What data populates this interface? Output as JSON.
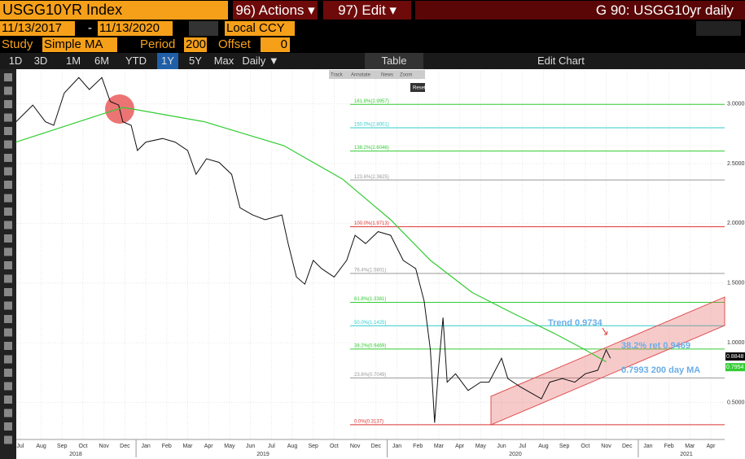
{
  "header": {
    "security": "USGG10YR Index",
    "actions": "96) Actions ▾",
    "edit": "97) Edit ▾",
    "title": "G 90: USGG10yr daily"
  },
  "controls": {
    "start_date": "11/13/2017",
    "separator": "-",
    "end_date": "11/13/2020",
    "currency": "Local CCY",
    "study_label": "Study",
    "study": "Simple MA",
    "period_label": "Period",
    "period": 200,
    "offset_label": "Offset",
    "offset": 0
  },
  "toolbar": {
    "ranges": [
      "1D",
      "3D",
      "1M",
      "6M",
      "YTD",
      "1Y",
      "5Y",
      "Max"
    ],
    "frequency": "Daily ▼",
    "table": "Table",
    "edit_chart": "Edit Chart"
  },
  "mini_toolbar": {
    "tools": [
      "Track",
      "Annotate",
      "News",
      "Zoom"
    ],
    "reset": "Reset"
  },
  "chart_data": {
    "type": "line",
    "xlim": [
      -0.19,
      33.66
    ],
    "xticks": [
      {
        "value": 0,
        "label": "Jul"
      },
      {
        "value": 1,
        "label": "Aug"
      },
      {
        "value": 2,
        "label": "Sep"
      },
      {
        "value": 3,
        "label": "Oct"
      },
      {
        "value": 4,
        "label": "Nov"
      },
      {
        "value": 5,
        "label": "Dec"
      },
      {
        "value": 6,
        "label": "Jan"
      },
      {
        "value": 7,
        "label": "Feb"
      },
      {
        "value": 8,
        "label": "Mar"
      },
      {
        "value": 9,
        "label": "Apr"
      },
      {
        "value": 10,
        "label": "May"
      },
      {
        "value": 11,
        "label": "Jun"
      },
      {
        "value": 12,
        "label": "Jul"
      },
      {
        "value": 13,
        "label": "Aug"
      },
      {
        "value": 14,
        "label": "Sep"
      },
      {
        "value": 15,
        "label": "Oct"
      },
      {
        "value": 16,
        "label": "Nov"
      },
      {
        "value": 17,
        "label": "Dec"
      },
      {
        "value": 18,
        "label": "Jan"
      },
      {
        "value": 19,
        "label": "Feb"
      },
      {
        "value": 20,
        "label": "Mar"
      },
      {
        "value": 21,
        "label": "Apr"
      },
      {
        "value": 22,
        "label": "May"
      },
      {
        "value": 23,
        "label": "Jun"
      },
      {
        "value": 24,
        "label": "Jul"
      },
      {
        "value": 25,
        "label": "Aug"
      },
      {
        "value": 26,
        "label": "Sep"
      },
      {
        "value": 27,
        "label": "Oct"
      },
      {
        "value": 28,
        "label": "Nov"
      },
      {
        "value": 29,
        "label": "Dec"
      },
      {
        "value": 30,
        "label": "Jan"
      },
      {
        "value": 31,
        "label": "Feb"
      },
      {
        "value": 32,
        "label": "Mar"
      },
      {
        "value": 33,
        "label": "Apr"
      }
    ],
    "years": [
      "2018",
      "2019",
      "2020",
      "2021"
    ],
    "ylim": [
      0.19,
      3.27
    ],
    "yticks": [
      {
        "value": 3,
        "label": "3.0000"
      },
      {
        "value": 2.5,
        "label": "2.5000"
      },
      {
        "value": 2,
        "label": "2.0000"
      },
      {
        "value": 1.5,
        "label": "1.5000"
      },
      {
        "value": 1,
        "label": "1.0000"
      },
      {
        "value": 0.5,
        "label": "0.5000"
      }
    ],
    "grid": true,
    "series": [
      {
        "color": "#111111",
        "x": [
          -0.2,
          0.6,
          1.2,
          1.6,
          2.1,
          2.8,
          3.3,
          3.9,
          4.3,
          4.7,
          4.9,
          5.3,
          5.6,
          6.0,
          6.8,
          7.4,
          8.0,
          8.4,
          8.9,
          9.5,
          10.1,
          10.5,
          11.1,
          11.7,
          12.5,
          12.8,
          13.2,
          13.6,
          14.0,
          14.4,
          15.0,
          15.6,
          16.0,
          16.5,
          17.1,
          17.7,
          18.3,
          18.9,
          19.3,
          19.6,
          19.8,
          20.0,
          20.2,
          20.4,
          20.8,
          21.4,
          22.0,
          22.4,
          23.0,
          23.3,
          23.9,
          24.5,
          24.9,
          25.3,
          25.9,
          26.5,
          27.0,
          27.6,
          28.0,
          28.2
        ],
        "values": [
          2.85,
          2.99,
          2.85,
          2.82,
          3.09,
          3.22,
          3.12,
          3.22,
          3.02,
          2.99,
          2.85,
          2.82,
          2.61,
          2.68,
          2.71,
          2.68,
          2.61,
          2.41,
          2.54,
          2.51,
          2.41,
          2.13,
          2.07,
          2.03,
          2.07,
          1.83,
          1.55,
          1.49,
          1.69,
          1.62,
          1.55,
          1.69,
          1.9,
          1.83,
          1.93,
          1.9,
          1.69,
          1.62,
          1.35,
          0.94,
          0.33,
          0.81,
          1.21,
          0.67,
          0.74,
          0.6,
          0.67,
          0.67,
          0.87,
          0.7,
          0.63,
          0.57,
          0.53,
          0.67,
          0.7,
          0.67,
          0.74,
          0.77,
          0.94,
          0.87
        ]
      },
      {
        "color": "#33cc33",
        "x": [
          -0.2,
          4.9,
          5.6,
          8.8,
          12.6,
          15.4,
          17.7,
          19.6,
          21.6,
          23.5,
          25.5,
          27.0,
          28.0
        ],
        "values": [
          2.68,
          2.97,
          2.95,
          2.85,
          2.65,
          2.37,
          2.03,
          1.69,
          1.42,
          1.25,
          1.08,
          0.94,
          0.84
        ]
      }
    ],
    "fib_levels": [
      {
        "label": "161.8%(2.9957)",
        "value": 2.9957,
        "color": "#33cc33"
      },
      {
        "label": "150.0%(2.8001)",
        "value": 2.8001,
        "color": "#33cccc"
      },
      {
        "label": "138.2%(2.6046)",
        "value": 2.6046,
        "color": "#33cc33"
      },
      {
        "label": "123.6%(2.3625)",
        "value": 2.3625,
        "color": "#999999"
      },
      {
        "label": "100.0%(1.9713)",
        "value": 1.9713,
        "color": "#dd3333"
      },
      {
        "label": "76.4%(1.5801)",
        "value": 1.5801,
        "color": "#999999"
      },
      {
        "label": "61.8%(1.3381)",
        "value": 1.3381,
        "color": "#33cc33"
      },
      {
        "label": "50.0%(1.1425)",
        "value": 1.1425,
        "color": "#33cccc"
      },
      {
        "label": "38.2%(0.9469)",
        "value": 0.9469,
        "color": "#33cc33"
      },
      {
        "label": "23.6%(0.7049)",
        "value": 0.7049,
        "color": "#999999"
      },
      {
        "label": "0.0%(0.3137)",
        "value": 0.3137,
        "color": "#dd3333"
      }
    ],
    "annotations": [
      "Trend 0.9734",
      "38.2% ret 0.9469",
      "0.7993 200 day MA"
    ],
    "last_values": [
      {
        "value": 0.8848,
        "label": "0.8848",
        "color": "#000000"
      },
      {
        "value": 0.7954,
        "label": "0.7954",
        "color": "#33cc33"
      }
    ]
  }
}
